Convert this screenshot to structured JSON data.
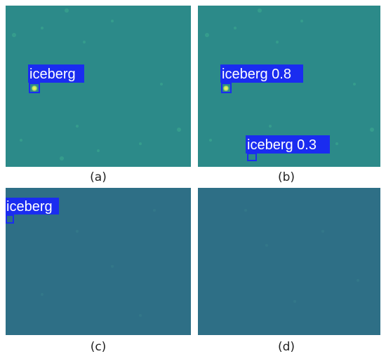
{
  "panels": [
    {
      "caption": "(a)",
      "detections": [
        {
          "label": "iceberg"
        }
      ]
    },
    {
      "caption": "(b)",
      "detections": [
        {
          "label": "iceberg 0.8"
        },
        {
          "label": "iceberg 0.3"
        }
      ]
    },
    {
      "caption": "(c)",
      "detections": [
        {
          "label": "iceberg"
        }
      ]
    },
    {
      "caption": "(d)",
      "detections": []
    }
  ]
}
